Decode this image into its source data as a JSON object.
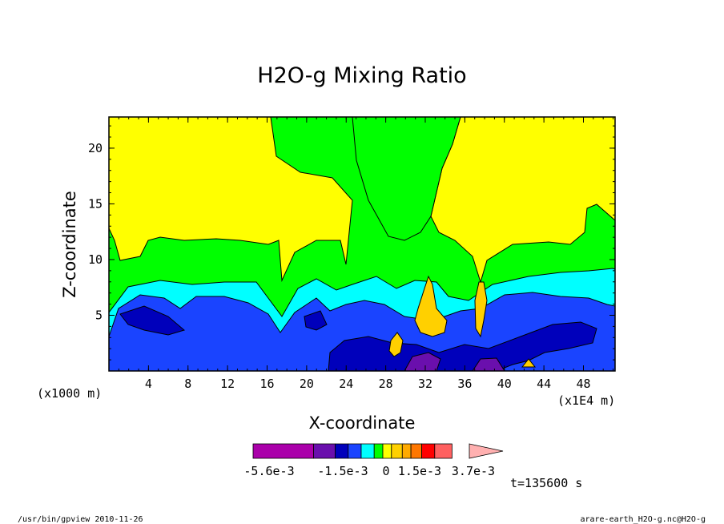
{
  "chart_data": {
    "type": "heatmap",
    "title": "H2O-g Mixing Ratio",
    "xlabel": "X-coordinate",
    "ylabel": "Z-coordinate",
    "x_ticks": [
      4,
      8,
      12,
      16,
      20,
      24,
      28,
      32,
      36,
      40,
      44,
      48
    ],
    "y_ticks": [
      5,
      10,
      15,
      20
    ],
    "xlim": [
      0,
      51.2
    ],
    "ylim": [
      0,
      22.8
    ],
    "x_unit_label": "(x1E4 m)",
    "y_unit_label": "(x1000 m)",
    "colorbar": {
      "labels": [
        "-5.6e-3",
        "-1.5e-3",
        "0",
        "1.5e-3",
        "3.7e-3"
      ],
      "colors": [
        "#aa00aa",
        "#aa00aa",
        "#aa00aa",
        "#6a0fad",
        "#0000bb",
        "#1a44ff",
        "#00ffff",
        "#00ff00",
        "#ffff00",
        "#ffd000",
        "#ffaa00",
        "#ff7700",
        "#ff0000",
        "#ff6060",
        "#ffb0b0"
      ]
    },
    "time_label": "t=135600 s",
    "grid": false,
    "legend": "colorbar-bottom"
  },
  "footer": {
    "left": "/usr/bin/gpview  2010-11-26",
    "right": "arare-earth_H2O-g.nc@H2O-g"
  }
}
